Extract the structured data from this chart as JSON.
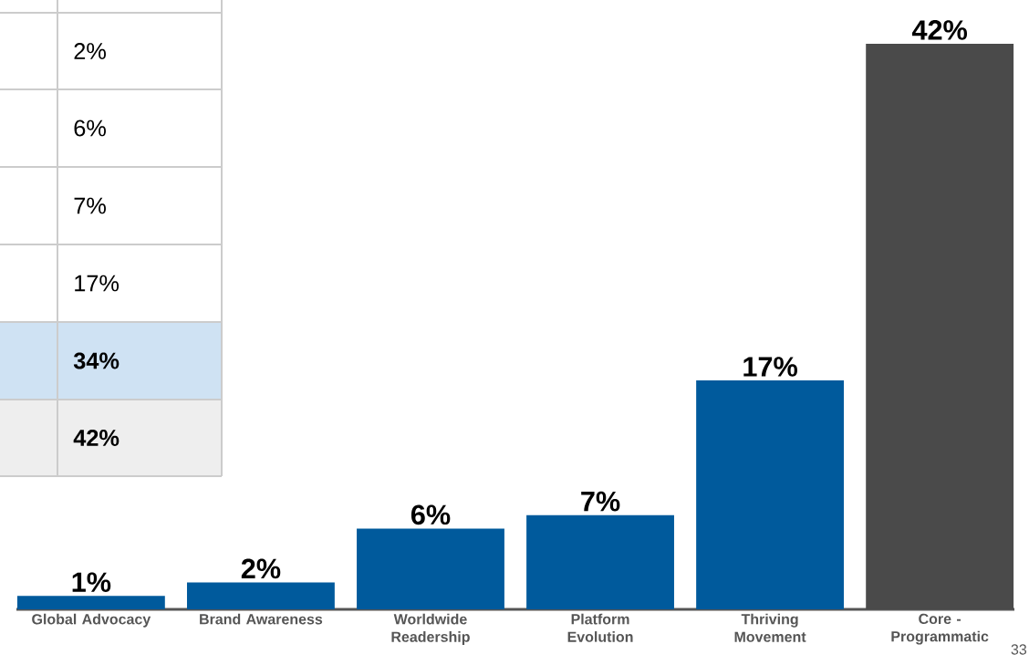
{
  "chart_data": {
    "type": "bar",
    "categories": [
      "Global Advocacy",
      "Brand Awareness",
      "Worldwide Readership",
      "Platform Evolution",
      "Thriving Movement",
      "Core - Programmatic"
    ],
    "values": [
      1,
      2,
      6,
      7,
      17,
      42
    ],
    "colors": [
      "#005a9c",
      "#005a9c",
      "#005a9c",
      "#005a9c",
      "#005a9c",
      "#4a4a4a"
    ],
    "value_labels": [
      "1%",
      "2%",
      "6%",
      "7%",
      "17%",
      "42%"
    ],
    "ylim": [
      0,
      42
    ],
    "tick_labels": "x",
    "annotations": [
      "2%",
      "6%",
      "7%",
      "17%",
      "34%",
      "42%",
      "33"
    ]
  }
}
